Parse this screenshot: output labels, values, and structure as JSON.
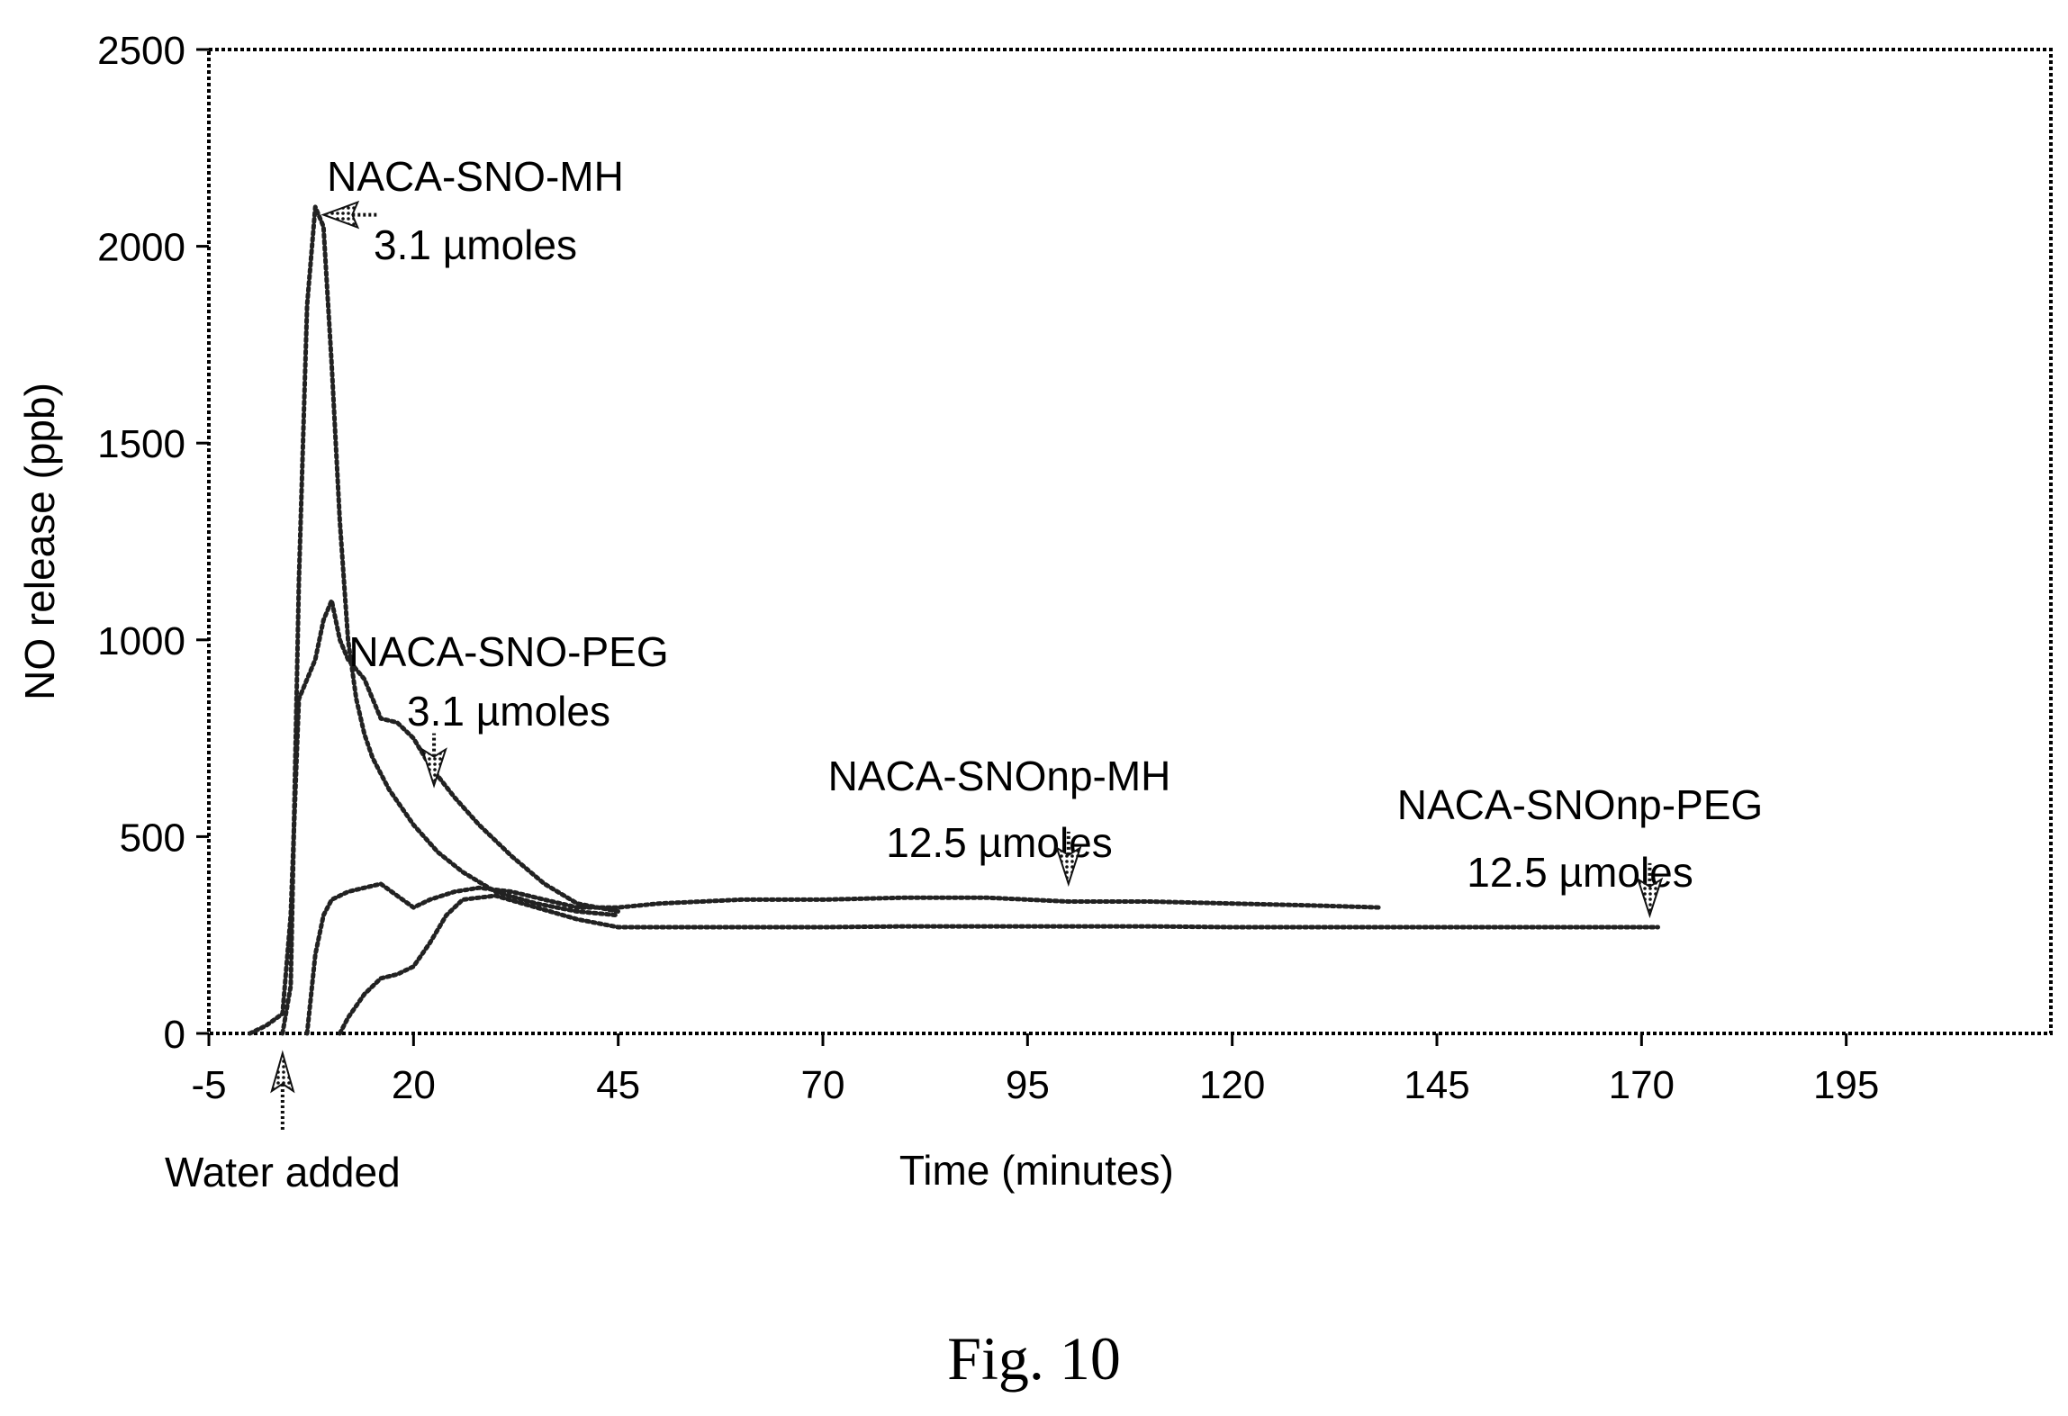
{
  "chart_data": {
    "type": "line",
    "title": "",
    "xlabel": "Time (minutes)",
    "ylabel": "NO release (ppb)",
    "xlim": [
      -5,
      220
    ],
    "ylim": [
      0,
      2500
    ],
    "x_ticks": [
      -5,
      20,
      45,
      70,
      95,
      120,
      145,
      170,
      195
    ],
    "y_ticks": [
      0,
      500,
      1000,
      1500,
      2000,
      2500
    ],
    "grid": false,
    "legend": "none",
    "series": [
      {
        "x": [
          4,
          5,
          6,
          7,
          8,
          9,
          10,
          11,
          12,
          13,
          14,
          15,
          17,
          20,
          23,
          26,
          30,
          35,
          40,
          45
        ],
        "y": [
          0,
          120,
          1150,
          1850,
          2100,
          2050,
          1700,
          1300,
          1000,
          850,
          760,
          700,
          620,
          530,
          460,
          410,
          360,
          330,
          310,
          300
        ]
      },
      {
        "x": [
          0,
          2,
          4,
          5,
          6,
          7,
          8,
          9,
          10,
          11,
          12,
          14,
          16,
          18,
          20,
          22,
          25,
          28,
          32,
          36,
          40,
          45
        ],
        "y": [
          0,
          20,
          50,
          300,
          850,
          900,
          950,
          1050,
          1100,
          1000,
          950,
          900,
          800,
          790,
          750,
          680,
          600,
          530,
          450,
          380,
          330,
          310
        ]
      },
      {
        "x": [
          7,
          8,
          9,
          10,
          12,
          14,
          16,
          18,
          20,
          22,
          25,
          28,
          32,
          36,
          40,
          45,
          50,
          60,
          70,
          80,
          90,
          100,
          110,
          120,
          130,
          138
        ],
        "y": [
          0,
          200,
          300,
          340,
          360,
          370,
          380,
          350,
          320,
          340,
          360,
          370,
          360,
          340,
          320,
          320,
          330,
          340,
          340,
          345,
          345,
          335,
          335,
          330,
          325,
          320
        ]
      },
      {
        "x": [
          11,
          12,
          14,
          16,
          18,
          20,
          22,
          24,
          26,
          30,
          35,
          40,
          45,
          50,
          60,
          70,
          80,
          90,
          100,
          110,
          120,
          130,
          140,
          150,
          160,
          172
        ],
        "y": [
          0,
          40,
          100,
          140,
          150,
          170,
          230,
          300,
          340,
          350,
          320,
          290,
          270,
          270,
          270,
          270,
          272,
          272,
          272,
          272,
          270,
          270,
          270,
          270,
          270,
          270
        ]
      }
    ],
    "annotations": [
      {
        "id": "mh",
        "line1": "NACA-SNO-MH",
        "line2": "3.1 µmoles",
        "point_x": 9,
        "point_y": 2080,
        "dir": "left"
      },
      {
        "id": "peg",
        "line1": "NACA-SNO-PEG",
        "line2": "3.1 µmoles",
        "point_x": 22.5,
        "point_y": 630,
        "dir": "down"
      },
      {
        "id": "npmh",
        "line1": "NACA-SNOnp-MH",
        "line2": "12.5 µmoles",
        "point_x": 100,
        "point_y": 380,
        "dir": "down"
      },
      {
        "id": "nppeg",
        "line1": "NACA-SNOnp-PEG",
        "line2": "12.5 µmoles",
        "point_x": 171,
        "point_y": 300,
        "dir": "down"
      }
    ],
    "event_marker": {
      "label": "Water added",
      "x": 4
    }
  },
  "figure_caption": "Fig. 10"
}
